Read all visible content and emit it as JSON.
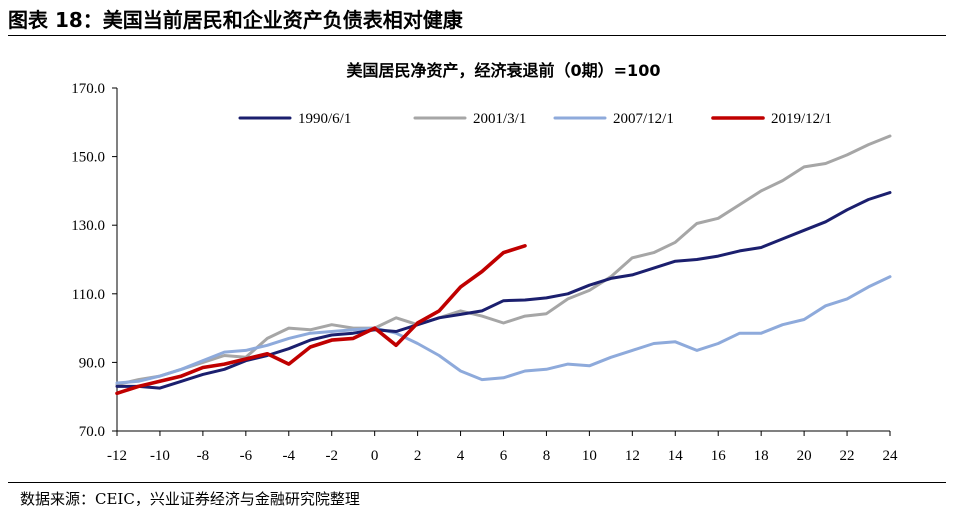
{
  "figure_title": "图表 18：美国当前居民和企业资产负债表相对健康",
  "source": "数据来源：CEIC，兴业证券经济与金融研究院整理",
  "chart_data": {
    "type": "line",
    "title": "美国居民净资产，经济衰退前（0期）=100",
    "xlabel": "",
    "ylabel": "",
    "xlim": [
      -12,
      24
    ],
    "ylim": [
      70,
      170
    ],
    "x_ticks": [
      -12,
      -10,
      -8,
      -6,
      -4,
      -2,
      0,
      2,
      4,
      6,
      8,
      10,
      12,
      14,
      16,
      18,
      20,
      22,
      24
    ],
    "x_tick_labels": [
      "-12",
      "-10",
      "-8",
      "-6",
      "-4",
      "-2",
      "0",
      "2",
      "4",
      "6",
      "8",
      "10",
      "12",
      "14",
      "16",
      "18",
      "20",
      "22",
      "24"
    ],
    "y_ticks": [
      70,
      90,
      110,
      130,
      150,
      170
    ],
    "y_tick_labels": [
      "70.0",
      "90.0",
      "110.0",
      "130.0",
      "150.0",
      "170.0"
    ],
    "legend_position": "top",
    "series": [
      {
        "name": "1990/6/1",
        "color": "#1b1f6e",
        "x": [
          -12,
          -11,
          -10,
          -9,
          -8,
          -7,
          -6,
          -5,
          -4,
          -3,
          -2,
          -1,
          0,
          1,
          2,
          3,
          4,
          5,
          6,
          7,
          8,
          9,
          10,
          11,
          12,
          13,
          14,
          15,
          16,
          17,
          18,
          19,
          20,
          21,
          22,
          23,
          24
        ],
        "values": [
          83,
          83,
          82.5,
          84.5,
          86.5,
          88,
          90.5,
          92,
          94,
          96.5,
          98,
          98.5,
          99.5,
          99,
          101,
          103,
          104,
          105,
          108,
          108.2,
          108.8,
          110,
          112.5,
          114.5,
          115.5,
          117.5,
          119.5,
          120,
          121,
          122.5,
          123.5,
          126,
          128.5,
          131,
          134.5,
          137.5,
          139.5
        ]
      },
      {
        "name": "2001/3/1",
        "color": "#a6a6a6",
        "x": [
          -12,
          -11,
          -10,
          -9,
          -8,
          -7,
          -6,
          -5,
          -4,
          -3,
          -2,
          -1,
          0,
          1,
          2,
          3,
          4,
          5,
          6,
          7,
          8,
          9,
          10,
          11,
          12,
          13,
          14,
          15,
          16,
          17,
          18,
          19,
          20,
          21,
          22,
          23,
          24
        ],
        "values": [
          83.5,
          85,
          86,
          88,
          90,
          92,
          91.5,
          97,
          100,
          99.5,
          101,
          100,
          100,
          103,
          101,
          103,
          105,
          103.5,
          101.5,
          103.5,
          104.2,
          108.5,
          111,
          115,
          120.5,
          122,
          125,
          130.5,
          132,
          136,
          140,
          143,
          147,
          148,
          150.5,
          153.5,
          156
        ]
      },
      {
        "name": "2007/12/1",
        "color": "#8eaadb",
        "x": [
          -12,
          -11,
          -10,
          -9,
          -8,
          -7,
          -6,
          -5,
          -4,
          -3,
          -2,
          -1,
          0,
          1,
          2,
          3,
          4,
          5,
          6,
          7,
          8,
          9,
          10,
          11,
          12,
          13,
          14,
          15,
          16,
          17,
          18,
          19,
          20,
          21,
          22,
          23,
          24
        ],
        "values": [
          84,
          84.5,
          86,
          88,
          90.5,
          93,
          93.5,
          95,
          97,
          98.5,
          99,
          99.5,
          100,
          98.5,
          95.5,
          92,
          87.5,
          85,
          85.5,
          87.5,
          88,
          89.5,
          89,
          91.5,
          93.5,
          95.5,
          96,
          93.5,
          95.5,
          98.5,
          98.5,
          101,
          102.5,
          106.5,
          108.5,
          112,
          115
        ]
      },
      {
        "name": "2019/12/1",
        "color": "#c00000",
        "x": [
          -12,
          -11,
          -10,
          -9,
          -8,
          -7,
          -6,
          -5,
          -4,
          -3,
          -2,
          -1,
          0,
          1,
          2,
          3,
          4,
          5,
          6,
          7
        ],
        "values": [
          81,
          83,
          84.5,
          86,
          88.5,
          89.5,
          91,
          92.5,
          89.5,
          94.5,
          96.5,
          97,
          100,
          95,
          101.5,
          105,
          112,
          116.5,
          122,
          124
        ]
      }
    ]
  }
}
